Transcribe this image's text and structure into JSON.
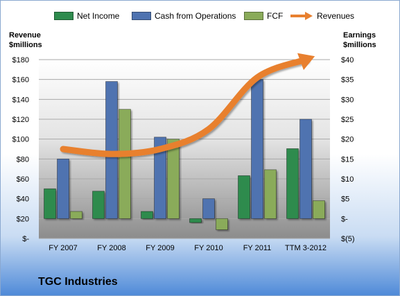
{
  "company": "TGC Industries",
  "axes": {
    "left_title": [
      "Revenue",
      "$millions"
    ],
    "right_title": [
      "Earnings",
      "$millions"
    ]
  },
  "colors": {
    "net_income": "#2e8b4e",
    "cash_from_operations": "#4f73b0",
    "fcf": "#8aab5a",
    "revenues": "#e8802f"
  },
  "chart_data": {
    "type": "bar",
    "categories": [
      "FY 2007",
      "FY 2008",
      "FY 2009",
      "FY 2010",
      "FY 2011",
      "TTM 3-2012"
    ],
    "series": [
      {
        "name": "Net Income",
        "axis": "right",
        "values": [
          7.5,
          6.9,
          1.8,
          -1.0,
          10.8,
          17.6
        ]
      },
      {
        "name": "Cash from Operations",
        "axis": "right",
        "values": [
          15.0,
          34.5,
          20.5,
          5.0,
          35.0,
          25.0
        ]
      },
      {
        "name": "FCF",
        "axis": "right",
        "values": [
          1.8,
          27.5,
          20.0,
          -2.8,
          12.3,
          4.5
        ]
      },
      {
        "name": "Revenues",
        "type": "line",
        "axis": "left",
        "values": [
          90,
          85,
          90,
          110,
          162,
          180
        ]
      }
    ],
    "left_axis": {
      "ylim": [
        0,
        180
      ],
      "ticks": [
        "$-",
        "$20",
        "$40",
        "$60",
        "$80",
        "$100",
        "$120",
        "$140",
        "$160",
        "$180"
      ]
    },
    "right_axis": {
      "ylim": [
        -5,
        40
      ],
      "ticks": [
        "$(5)",
        "$-",
        "$5",
        "$10",
        "$15",
        "$20",
        "$25",
        "$30",
        "$35",
        "$40"
      ]
    },
    "grid": true,
    "legend": "top"
  }
}
